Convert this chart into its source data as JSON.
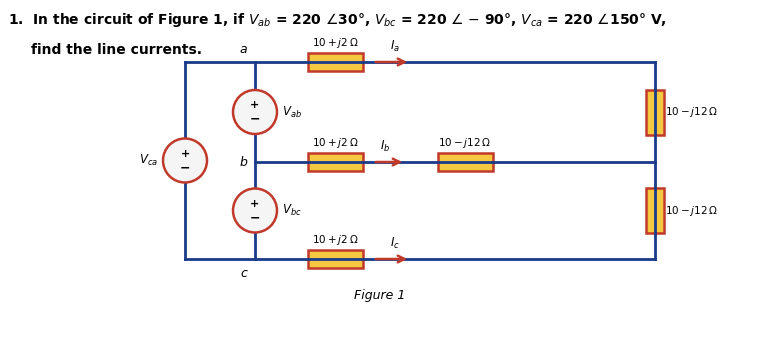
{
  "title_line1": "1.  In the circuit of Figure 1, if $V_{ab}$ = 220 ⌊30°, $V_{bc}$ = 220 ⌊ − 90°, $V_{ca}$ = 220 ⌊150° V,",
  "title_line2": "find the line currents.",
  "figure_label": "Figure 1",
  "background_color": "#ffffff",
  "circuit_line_color": "#1a3a8a",
  "resistor_fill": "#f5c842",
  "resistor_border": "#c0392b",
  "source_border": "#c0392b",
  "source_fill": "#f5f5f5",
  "arrow_color": "#c0392b",
  "text_color": "#000000",
  "label_color": "#1a3a8a"
}
